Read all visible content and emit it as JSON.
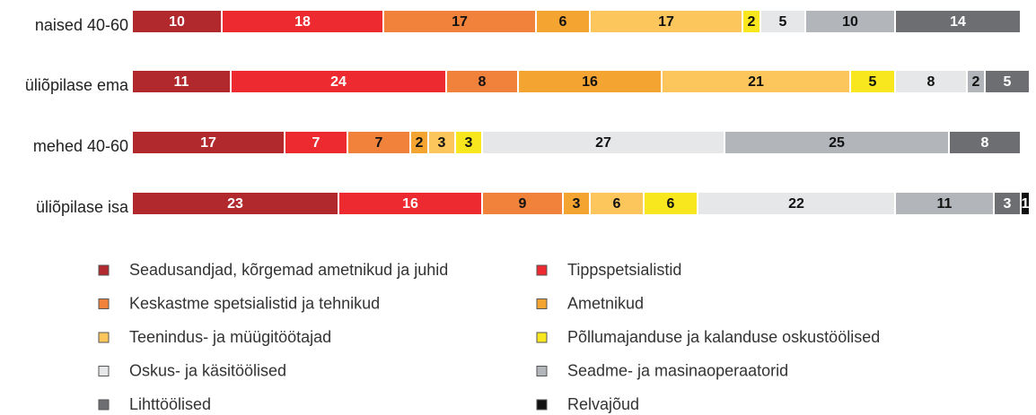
{
  "chart_data": {
    "type": "stacked-bar-horizontal",
    "categories": [
      "naised 40-60",
      "üliõpilase ema",
      "mehed 40-60",
      "üliõpilase isa"
    ],
    "xlim": [
      0,
      100
    ],
    "series": [
      {
        "name": "Seadusandjad, kõrgemad ametnikud ja juhid",
        "color": "#b1282d",
        "values": [
          10,
          11,
          17,
          23
        ]
      },
      {
        "name": "Tippspetsialistid",
        "color": "#ec2a2f",
        "values": [
          18,
          24,
          7,
          16
        ]
      },
      {
        "name": "Keskastme spetsialistid ja tehnikud",
        "color": "#f0823b",
        "values": [
          17,
          8,
          7,
          9
        ]
      },
      {
        "name": "Ametnikud",
        "color": "#f4a431",
        "values": [
          6,
          16,
          2,
          3
        ]
      },
      {
        "name": "Teenindus- ja müügitöötajad",
        "color": "#fcc65d",
        "values": [
          17,
          21,
          3,
          6
        ]
      },
      {
        "name": "Põllumajanduse ja kalanduse oskustöölised",
        "color": "#f8e71f",
        "values": [
          2,
          5,
          3,
          6
        ]
      },
      {
        "name": "Oskus- ja käsitöölised",
        "color": "#e6e7e9",
        "values": [
          5,
          8,
          27,
          22
        ]
      },
      {
        "name": "Seadme- ja masinaoperaatorid",
        "color": "#b2b5ba",
        "values": [
          10,
          2,
          25,
          11
        ]
      },
      {
        "name": "Lihttöölised",
        "color": "#6c6e71",
        "values": [
          14,
          5,
          8,
          3
        ]
      },
      {
        "name": "Relvajõud",
        "color": "#111111",
        "values": [
          null,
          null,
          null,
          1
        ]
      }
    ]
  }
}
